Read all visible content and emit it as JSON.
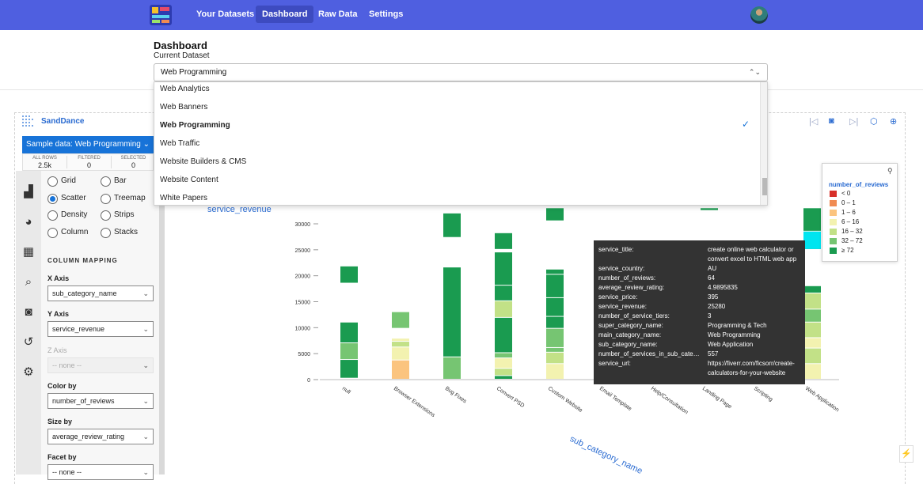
{
  "topbar": {
    "nav": [
      "Your Datasets",
      "Dashboard",
      "Raw Data",
      "Settings"
    ],
    "active": "Dashboard",
    "colors": {
      "bar": "#4f5fe0",
      "active": "#3d4bc0"
    }
  },
  "page": {
    "title": "Dashboard",
    "current_dataset_label": "Current Dataset",
    "current_dataset": "Web Programming"
  },
  "dataset_dropdown": {
    "options": [
      "Web Analytics",
      "Web Banners",
      "Web Programming",
      "Web Traffic",
      "Website Builders & CMS",
      "Website Content",
      "White Papers"
    ],
    "selected": "Web Programming"
  },
  "sanddance": {
    "title": "SandDance",
    "sample_button": "Sample data: Web Programming",
    "counts": [
      {
        "label": "ALL ROWS",
        "value": "2.5k"
      },
      {
        "label": "FILTERED",
        "value": "0"
      },
      {
        "label": "SELECTED",
        "value": "0"
      }
    ],
    "chart_types": [
      {
        "label": "Grid",
        "selected": false
      },
      {
        "label": "Bar",
        "selected": false
      },
      {
        "label": "Scatter",
        "selected": true
      },
      {
        "label": "Treemap",
        "selected": false
      },
      {
        "label": "Density",
        "selected": false
      },
      {
        "label": "Strips",
        "selected": false
      },
      {
        "label": "Column",
        "selected": false
      },
      {
        "label": "Stacks",
        "selected": false
      }
    ],
    "column_mapping_title": "COLUMN MAPPING",
    "x_axis": {
      "label": "X Axis",
      "value": "sub_category_name"
    },
    "y_axis": {
      "label": "Y Axis",
      "value": "service_revenue"
    },
    "z_axis": {
      "label": "Z Axis",
      "value": "-- none --"
    },
    "color_by": {
      "label": "Color by",
      "value": "number_of_reviews"
    },
    "size_by": {
      "label": "Size by",
      "value": "average_review_rating"
    },
    "facet_by": {
      "label": "Facet by",
      "value": "-- none --"
    }
  },
  "tooltip": [
    {
      "k": "service_title:",
      "v": "create online web calculator or convert excel to HTML web app"
    },
    {
      "k": "service_country:",
      "v": "AU"
    },
    {
      "k": "number_of_reviews:",
      "v": "64"
    },
    {
      "k": "average_review_rating:",
      "v": "4.9895835"
    },
    {
      "k": "service_price:",
      "v": "395"
    },
    {
      "k": "service_revenue:",
      "v": "25280"
    },
    {
      "k": "number_of_service_tiers:",
      "v": "3"
    },
    {
      "k": "super_category_name:",
      "v": "Programming & Tech"
    },
    {
      "k": "main_category_name:",
      "v": "Web Programming"
    },
    {
      "k": "sub_category_name:",
      "v": "Web Application"
    },
    {
      "k": "number_of_services_in_sub_cate…",
      "v": "557"
    },
    {
      "k": "service_url:",
      "v": "https://fiverr.com/ficsorr/create-calculators-for-your-website"
    }
  ],
  "legend": {
    "title": "number_of_reviews",
    "items": [
      {
        "label": "< 0",
        "color": "#d7302a"
      },
      {
        "label": "0 – 1",
        "color": "#f08b52"
      },
      {
        "label": "1 – 6",
        "color": "#fbc47f"
      },
      {
        "label": "6 – 16",
        "color": "#f3f2b0"
      },
      {
        "label": "16 – 32",
        "color": "#c2e187"
      },
      {
        "label": "32 – 72",
        "color": "#76c572"
      },
      {
        "label": "≥ 72",
        "color": "#1a9b50"
      }
    ]
  },
  "chart_data": {
    "type": "bar",
    "title": "",
    "xlabel": "sub_category_name",
    "ylabel": "service_revenue",
    "ylim": [
      0,
      33000
    ],
    "y_ticks": [
      "0",
      "5000",
      "10000",
      "15000",
      "20000",
      "25000",
      "30000"
    ],
    "y_tick_values": [
      0,
      5000,
      10000,
      15000,
      20000,
      25000,
      30000
    ],
    "categories": [
      "null",
      "Browser Extensions",
      "Bug Fixes",
      "Convert PSD",
      "Custom Website",
      "Email Template",
      "Help/Consultation",
      "Landing Page",
      "Scripting",
      "Web Application"
    ],
    "stacks": [
      [
        {
          "from": 200,
          "to": 3800,
          "c": 6
        },
        {
          "from": 3800,
          "to": 7000,
          "c": 5
        },
        {
          "from": 7000,
          "to": 11000,
          "c": 6
        },
        {
          "from": 18500,
          "to": 21800,
          "c": 6
        }
      ],
      [
        {
          "from": 0,
          "to": 3700,
          "c": 2
        },
        {
          "from": 3700,
          "to": 6200,
          "c": 3
        },
        {
          "from": 6200,
          "to": 7300,
          "c": 4
        },
        {
          "from": 7300,
          "to": 7900,
          "c": 3
        },
        {
          "from": 9800,
          "to": 13000,
          "c": 5
        }
      ],
      [
        {
          "from": 0,
          "to": 4300,
          "c": 5
        },
        {
          "from": 4300,
          "to": 21600,
          "c": 6
        },
        {
          "from": 27300,
          "to": 32000,
          "c": 6
        }
      ],
      [
        {
          "from": 0,
          "to": 700,
          "c": 6
        },
        {
          "from": 700,
          "to": 2100,
          "c": 4
        },
        {
          "from": 2100,
          "to": 4100,
          "c": 3
        },
        {
          "from": 4100,
          "to": 5100,
          "c": 5
        },
        {
          "from": 5100,
          "to": 11900,
          "c": 6
        },
        {
          "from": 11900,
          "to": 15100,
          "c": 4
        },
        {
          "from": 15100,
          "to": 18100,
          "c": 6
        },
        {
          "from": 18100,
          "to": 24500,
          "c": 6
        },
        {
          "from": 25000,
          "to": 28200,
          "c": 6
        }
      ],
      [
        {
          "from": 0,
          "to": 3000,
          "c": 3
        },
        {
          "from": 3000,
          "to": 5200,
          "c": 4
        },
        {
          "from": 5200,
          "to": 6100,
          "c": 5
        },
        {
          "from": 6100,
          "to": 9800,
          "c": 5
        },
        {
          "from": 9800,
          "to": 12100,
          "c": 6
        },
        {
          "from": 12100,
          "to": 15700,
          "c": 6
        },
        {
          "from": 15700,
          "to": 20200,
          "c": 6
        },
        {
          "from": 20200,
          "to": 21200,
          "c": 6
        },
        {
          "from": 30500,
          "to": 33000,
          "c": 6
        }
      ],
      [],
      [],
      [
        {
          "from": 32500,
          "to": 33000,
          "c": 6
        }
      ],
      [],
      [
        {
          "from": 0,
          "to": 3000,
          "c": 3
        },
        {
          "from": 3000,
          "to": 6000,
          "c": 4
        },
        {
          "from": 6000,
          "to": 8000,
          "c": 3
        },
        {
          "from": 8000,
          "to": 11000,
          "c": 4
        },
        {
          "from": 11000,
          "to": 13500,
          "c": 5
        },
        {
          "from": 13500,
          "to": 16600,
          "c": 4
        },
        {
          "from": 16600,
          "to": 18000,
          "c": 6
        },
        {
          "from": 25000,
          "to": 28500,
          "c": 6
        },
        {
          "from": 28500,
          "to": 33000,
          "c": 6
        }
      ]
    ]
  }
}
